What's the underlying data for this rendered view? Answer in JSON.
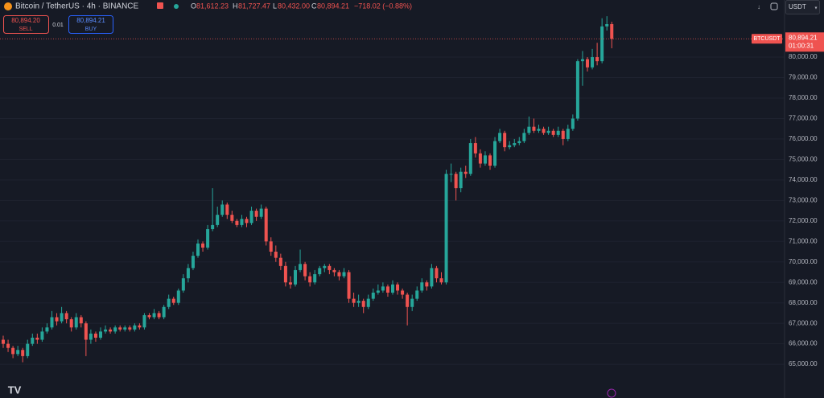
{
  "chart_data": {
    "type": "candlestick",
    "title": "Bitcoin / TetherUS · 4h · BINANCE",
    "legend": {
      "O": "81,612.23",
      "H": "81,727.47",
      "L": "80,432.00",
      "C": "80,894.21",
      "change": "−718.02 (−0.88%)"
    },
    "trade": {
      "sell_price": "80,894.20",
      "sell": "SELL",
      "quantity": "0.01",
      "buy_price": "80,894.21",
      "buy": "BUY"
    },
    "price_tag": {
      "symbol": "BTCUSDT",
      "last": 80894.21,
      "last_label": "80,894.21",
      "countdown": "01:00:31"
    },
    "currency": "USDT",
    "up_color": "#26a69a",
    "down_color": "#ef5350",
    "ylim": [
      64140,
      82790
    ],
    "yticks": [
      {
        "value": 65000,
        "label": "65,000.00"
      },
      {
        "value": 66000,
        "label": "66,000.00"
      },
      {
        "value": 67000,
        "label": "67,000.00"
      },
      {
        "value": 68000,
        "label": "68,000.00"
      },
      {
        "value": 69000,
        "label": "69,000.00"
      },
      {
        "value": 70000,
        "label": "70,000.00"
      },
      {
        "value": 71000,
        "label": "71,000.00"
      },
      {
        "value": 72000,
        "label": "72,000.00"
      },
      {
        "value": 73000,
        "label": "73,000.00"
      },
      {
        "value": 74000,
        "label": "74,000.00"
      },
      {
        "value": 75000,
        "label": "75,000.00"
      },
      {
        "value": 76000,
        "label": "76,000.00"
      },
      {
        "value": 77000,
        "label": "77,000.00"
      },
      {
        "value": 78000,
        "label": "78,000.00"
      },
      {
        "value": 79000,
        "label": "79,000.00"
      },
      {
        "value": 80000,
        "label": "80,000.00"
      }
    ],
    "grid": true,
    "candles": [
      [
        66200,
        66400,
        65800,
        66000
      ],
      [
        66000,
        66200,
        65600,
        65800
      ],
      [
        65800,
        65900,
        65300,
        65500
      ],
      [
        65500,
        65900,
        65400,
        65700
      ],
      [
        65700,
        65800,
        65100,
        65400
      ],
      [
        65400,
        66200,
        65300,
        66000
      ],
      [
        66000,
        66500,
        65900,
        66300
      ],
      [
        66300,
        66500,
        66000,
        66200
      ],
      [
        66200,
        66800,
        66100,
        66600
      ],
      [
        66600,
        67000,
        66500,
        66800
      ],
      [
        66800,
        67600,
        66700,
        67300
      ],
      [
        67300,
        67500,
        66900,
        67100
      ],
      [
        67100,
        67800,
        67000,
        67500
      ],
      [
        67500,
        67600,
        67000,
        67200
      ],
      [
        67200,
        67300,
        66600,
        66800
      ],
      [
        66800,
        67500,
        66700,
        67300
      ],
      [
        67300,
        67400,
        66800,
        67000
      ],
      [
        67000,
        67100,
        65400,
        66200
      ],
      [
        66200,
        66700,
        66000,
        66500
      ],
      [
        66500,
        66600,
        66100,
        66300
      ],
      [
        66300,
        66800,
        66200,
        66600
      ],
      [
        66600,
        66900,
        66500,
        66700
      ],
      [
        66700,
        66800,
        66500,
        66600
      ],
      [
        66600,
        66900,
        66500,
        66800
      ],
      [
        66800,
        66900,
        66600,
        66700
      ],
      [
        66700,
        66900,
        66600,
        66800
      ],
      [
        66800,
        66900,
        66600,
        66700
      ],
      [
        66700,
        67000,
        66600,
        66900
      ],
      [
        66900,
        67000,
        66700,
        66800
      ],
      [
        66800,
        67500,
        66700,
        67400
      ],
      [
        67400,
        67500,
        67200,
        67300
      ],
      [
        67300,
        67700,
        67200,
        67500
      ],
      [
        67500,
        67600,
        67200,
        67300
      ],
      [
        67300,
        67900,
        67200,
        67800
      ],
      [
        67800,
        68400,
        67700,
        68200
      ],
      [
        68200,
        68300,
        67900,
        68000
      ],
      [
        68000,
        68700,
        67900,
        68600
      ],
      [
        68600,
        69400,
        68500,
        69200
      ],
      [
        69200,
        69900,
        69000,
        69700
      ],
      [
        69700,
        70500,
        69600,
        70300
      ],
      [
        70300,
        71100,
        70200,
        70900
      ],
      [
        70900,
        71000,
        70500,
        70700
      ],
      [
        70700,
        71800,
        70600,
        71600
      ],
      [
        71600,
        73600,
        71500,
        71800
      ],
      [
        71800,
        72700,
        71700,
        72300
      ],
      [
        72300,
        73000,
        72200,
        72800
      ],
      [
        72800,
        72900,
        72100,
        72300
      ],
      [
        72300,
        72500,
        71900,
        72000
      ],
      [
        72000,
        72100,
        71700,
        71800
      ],
      [
        71800,
        72300,
        71700,
        72100
      ],
      [
        72100,
        72200,
        71700,
        71900
      ],
      [
        71900,
        72700,
        71800,
        72500
      ],
      [
        72500,
        72600,
        72000,
        72200
      ],
      [
        72200,
        72800,
        72100,
        72600
      ],
      [
        72600,
        72700,
        70800,
        71000
      ],
      [
        71000,
        71200,
        70300,
        70500
      ],
      [
        70500,
        70800,
        70000,
        70200
      ],
      [
        70200,
        70400,
        69600,
        69800
      ],
      [
        69800,
        70000,
        68800,
        69000
      ],
      [
        69000,
        69300,
        68700,
        68900
      ],
      [
        68900,
        69800,
        68800,
        69600
      ],
      [
        69600,
        70600,
        69500,
        69900
      ],
      [
        69900,
        70000,
        69100,
        69300
      ],
      [
        69300,
        69500,
        68800,
        69000
      ],
      [
        69000,
        69600,
        68900,
        69400
      ],
      [
        69400,
        69800,
        69300,
        69700
      ],
      [
        69700,
        69900,
        69500,
        69800
      ],
      [
        69800,
        69900,
        69400,
        69600
      ],
      [
        69600,
        69700,
        69300,
        69500
      ],
      [
        69500,
        69600,
        69100,
        69300
      ],
      [
        69300,
        69700,
        69200,
        69500
      ],
      [
        69500,
        69600,
        68000,
        68200
      ],
      [
        68200,
        68500,
        67800,
        68000
      ],
      [
        68000,
        68400,
        67800,
        68100
      ],
      [
        68100,
        68200,
        67500,
        67800
      ],
      [
        67800,
        68400,
        67700,
        68200
      ],
      [
        68200,
        68700,
        68100,
        68500
      ],
      [
        68500,
        68900,
        68400,
        68600
      ],
      [
        68600,
        69000,
        68500,
        68800
      ],
      [
        68800,
        68900,
        68300,
        68500
      ],
      [
        68500,
        69100,
        68400,
        68900
      ],
      [
        68900,
        69000,
        68400,
        68600
      ],
      [
        68600,
        68700,
        68200,
        68400
      ],
      [
        68400,
        68500,
        66900,
        67800
      ],
      [
        67800,
        68400,
        67600,
        68200
      ],
      [
        68200,
        68800,
        68100,
        68600
      ],
      [
        68600,
        69200,
        68500,
        69000
      ],
      [
        69000,
        69100,
        68600,
        68800
      ],
      [
        68800,
        69900,
        68700,
        69700
      ],
      [
        69700,
        69800,
        69000,
        69200
      ],
      [
        69200,
        69500,
        68900,
        69000
      ],
      [
        69000,
        74500,
        68900,
        74300
      ],
      [
        74300,
        74800,
        73900,
        74300
      ],
      [
        74300,
        74400,
        73000,
        73600
      ],
      [
        73600,
        74600,
        73400,
        74400
      ],
      [
        74400,
        74700,
        74100,
        74300
      ],
      [
        74300,
        76000,
        74200,
        75800
      ],
      [
        75800,
        76100,
        75100,
        75300
      ],
      [
        75300,
        75500,
        74600,
        74800
      ],
      [
        74800,
        75400,
        74700,
        75200
      ],
      [
        75200,
        75300,
        74500,
        74700
      ],
      [
        74700,
        76100,
        74600,
        75900
      ],
      [
        75900,
        76500,
        75800,
        76300
      ],
      [
        76300,
        76400,
        75400,
        75600
      ],
      [
        75600,
        75900,
        75500,
        75700
      ],
      [
        75700,
        76000,
        75600,
        75800
      ],
      [
        75800,
        76100,
        75700,
        75900
      ],
      [
        75900,
        76500,
        75800,
        76300
      ],
      [
        76300,
        77100,
        76200,
        76600
      ],
      [
        76600,
        77000,
        76300,
        76400
      ],
      [
        76400,
        76700,
        76300,
        76500
      ],
      [
        76500,
        76600,
        76200,
        76300
      ],
      [
        76300,
        76600,
        76200,
        76400
      ],
      [
        76400,
        76500,
        76100,
        76200
      ],
      [
        76200,
        76600,
        76100,
        76400
      ],
      [
        76400,
        76500,
        75700,
        76000
      ],
      [
        76000,
        76700,
        75900,
        76500
      ],
      [
        76500,
        77200,
        76400,
        77000
      ],
      [
        77000,
        79900,
        76900,
        79800
      ],
      [
        79800,
        80300,
        78600,
        79900
      ],
      [
        79900,
        80000,
        79300,
        79500
      ],
      [
        79500,
        80400,
        79400,
        80000
      ],
      [
        80000,
        80700,
        79600,
        79800
      ],
      [
        79800,
        81900,
        79700,
        81500
      ],
      [
        81500,
        82000,
        81300,
        81612.23
      ],
      [
        81612.23,
        81727.47,
        80432,
        80894.21
      ]
    ]
  }
}
